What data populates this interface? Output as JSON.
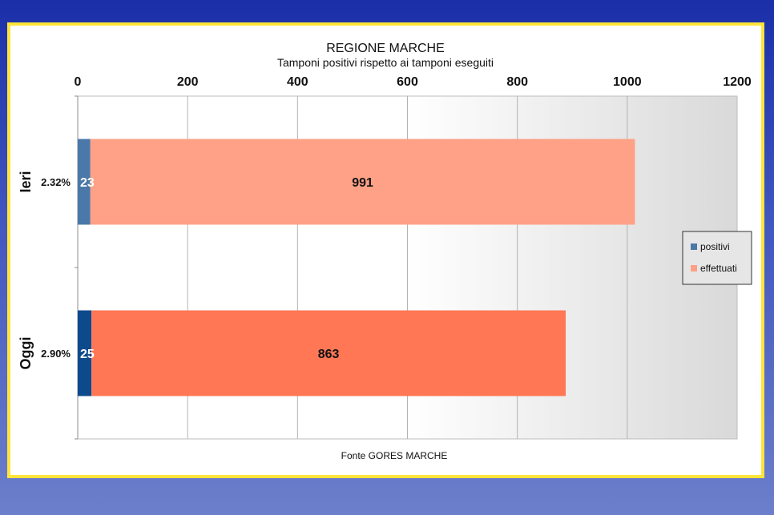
{
  "chart_data": {
    "type": "bar",
    "orientation": "horizontal",
    "stacked": true,
    "title": "REGIONE MARCHE",
    "subtitle": "Tamponi positivi rispetto ai tamponi eseguiti",
    "source": "Fonte GORES MARCHE",
    "categories": [
      "Ieri",
      "Oggi"
    ],
    "category_percentages": [
      "2.32%",
      "2.90%"
    ],
    "series": [
      {
        "name": "positivi",
        "values": [
          23,
          25
        ],
        "colors": [
          "#4a78a8",
          "#0d4a8c"
        ]
      },
      {
        "name": "effettuati",
        "values": [
          991,
          863
        ],
        "colors": [
          "#fea186",
          "#ff7754"
        ]
      }
    ],
    "xlim": [
      0,
      1200
    ],
    "x_ticks": [
      0,
      200,
      400,
      600,
      800,
      1000,
      1200
    ],
    "x_axis_position": "top",
    "grid": true,
    "legend_position": "right"
  }
}
